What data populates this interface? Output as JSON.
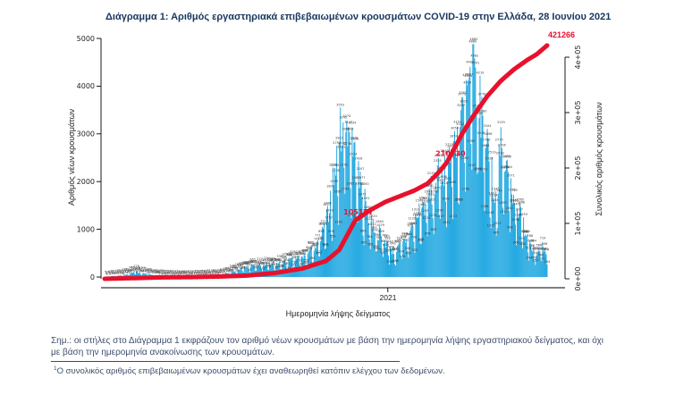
{
  "page": {
    "note_line1": "Σημ.: οι στήλες στο Διάγραμμα 1 εκφράζουν τον αριθμό νέων κρουσμάτων με βάση την ημερομηνία λήψης εργαστηριακού δείγματος, και όχι",
    "note_line2": "με βάση την ημερομηνία ανακοίνωσης των κρουσμάτων.",
    "footnote_marker": "1",
    "footnote_text": "Ο συνολικός αριθμός επιβεβαιωμένων κρουσμάτων έχει αναθεωρηθεί κατόπιν ελέγχου των δεδομένων."
  },
  "colors": {
    "title_navy": "#17375E",
    "note_blue": "#3F4E6B",
    "accent_red": "#E8112D",
    "bar_blue": "#1CA6E0",
    "axis_text": "#222222"
  },
  "chart_data": {
    "type": "bar+line",
    "title": "Διάγραμμα 1: Αριθμός εργαστηριακά επιβεβαιωμένων κρουσμάτων COVID-19 στην Ελλάδα, 28 Ιουνίου 2021",
    "x_axis": {
      "title": "Ημερομηνία λήψης δείγματος",
      "ticks": [
        {
          "label": "2021",
          "t": 0.64
        }
      ],
      "span_days": 489
    },
    "y_left": {
      "title": "Αριθμός νέων κρουσμάτων",
      "ticks": [
        0,
        1000,
        2000,
        3000,
        4000,
        5000
      ],
      "max": 5000
    },
    "y_right": {
      "title": "Συνολικός αριθμός κρουσμάτων",
      "ticks": [
        {
          "label": "0e+00",
          "value": 0
        },
        {
          "label": "1e+05",
          "value": 100000
        },
        {
          "label": "2e+05",
          "value": 200000
        },
        {
          "label": "3e+05",
          "value": 300000
        },
        {
          "label": "4e+05",
          "value": 400000
        }
      ]
    },
    "bars": {
      "name": "daily-new-confirmed-cases",
      "color": "#1CA6E0",
      "n_days": 489,
      "envelope": [
        [
          0.0,
          4
        ],
        [
          0.04,
          40
        ],
        [
          0.072,
          110
        ],
        [
          0.1,
          60
        ],
        [
          0.133,
          22
        ],
        [
          0.197,
          15
        ],
        [
          0.258,
          35
        ],
        [
          0.3,
          150
        ],
        [
          0.322,
          230
        ],
        [
          0.385,
          270
        ],
        [
          0.447,
          420
        ],
        [
          0.48,
          650
        ],
        [
          0.5,
          1100
        ],
        [
          0.52,
          2200
        ],
        [
          0.54,
          3500
        ],
        [
          0.555,
          3100
        ],
        [
          0.572,
          2200
        ],
        [
          0.59,
          1500
        ],
        [
          0.61,
          1050
        ],
        [
          0.635,
          750
        ],
        [
          0.655,
          520
        ],
        [
          0.68,
          780
        ],
        [
          0.699,
          1150
        ],
        [
          0.72,
          1500
        ],
        [
          0.74,
          1850
        ],
        [
          0.756,
          2150
        ],
        [
          0.78,
          2600
        ],
        [
          0.8,
          3100
        ],
        [
          0.82,
          3900
        ],
        [
          0.833,
          4500
        ],
        [
          0.85,
          3600
        ],
        [
          0.865,
          2900
        ],
        [
          0.883,
          1600
        ],
        [
          0.895,
          2700
        ],
        [
          0.915,
          2100
        ],
        [
          0.945,
          1150
        ],
        [
          0.965,
          700
        ],
        [
          0.98,
          480
        ],
        [
          0.99,
          620
        ],
        [
          1.0,
          380
        ]
      ],
      "max_daily_value": 4880
    },
    "cumulative": {
      "name": "total-confirmed-cases",
      "color": "#E8112D",
      "final_label": "421266",
      "final_value": 421266,
      "milestones": [
        {
          "label": "105157",
          "t": 0.566
        },
        {
          "label": "210730",
          "t": 0.774
        }
      ],
      "anchors": [
        [
          0.0,
          0
        ],
        [
          0.07,
          1300
        ],
        [
          0.133,
          2600
        ],
        [
          0.197,
          3100
        ],
        [
          0.258,
          4100
        ],
        [
          0.322,
          5800
        ],
        [
          0.385,
          10500
        ],
        [
          0.447,
          18500
        ],
        [
          0.5,
          32000
        ],
        [
          0.53,
          52000
        ],
        [
          0.566,
          105000
        ],
        [
          0.6,
          124000
        ],
        [
          0.635,
          139000
        ],
        [
          0.67,
          150000
        ],
        [
          0.699,
          159000
        ],
        [
          0.73,
          172000
        ],
        [
          0.756,
          193000
        ],
        [
          0.774,
          210700
        ],
        [
          0.808,
          262000
        ],
        [
          0.834,
          295000
        ],
        [
          0.865,
          330000
        ],
        [
          0.895,
          357000
        ],
        [
          0.925,
          378000
        ],
        [
          0.955,
          395000
        ],
        [
          0.976,
          405000
        ],
        [
          1.0,
          421266
        ]
      ]
    }
  }
}
